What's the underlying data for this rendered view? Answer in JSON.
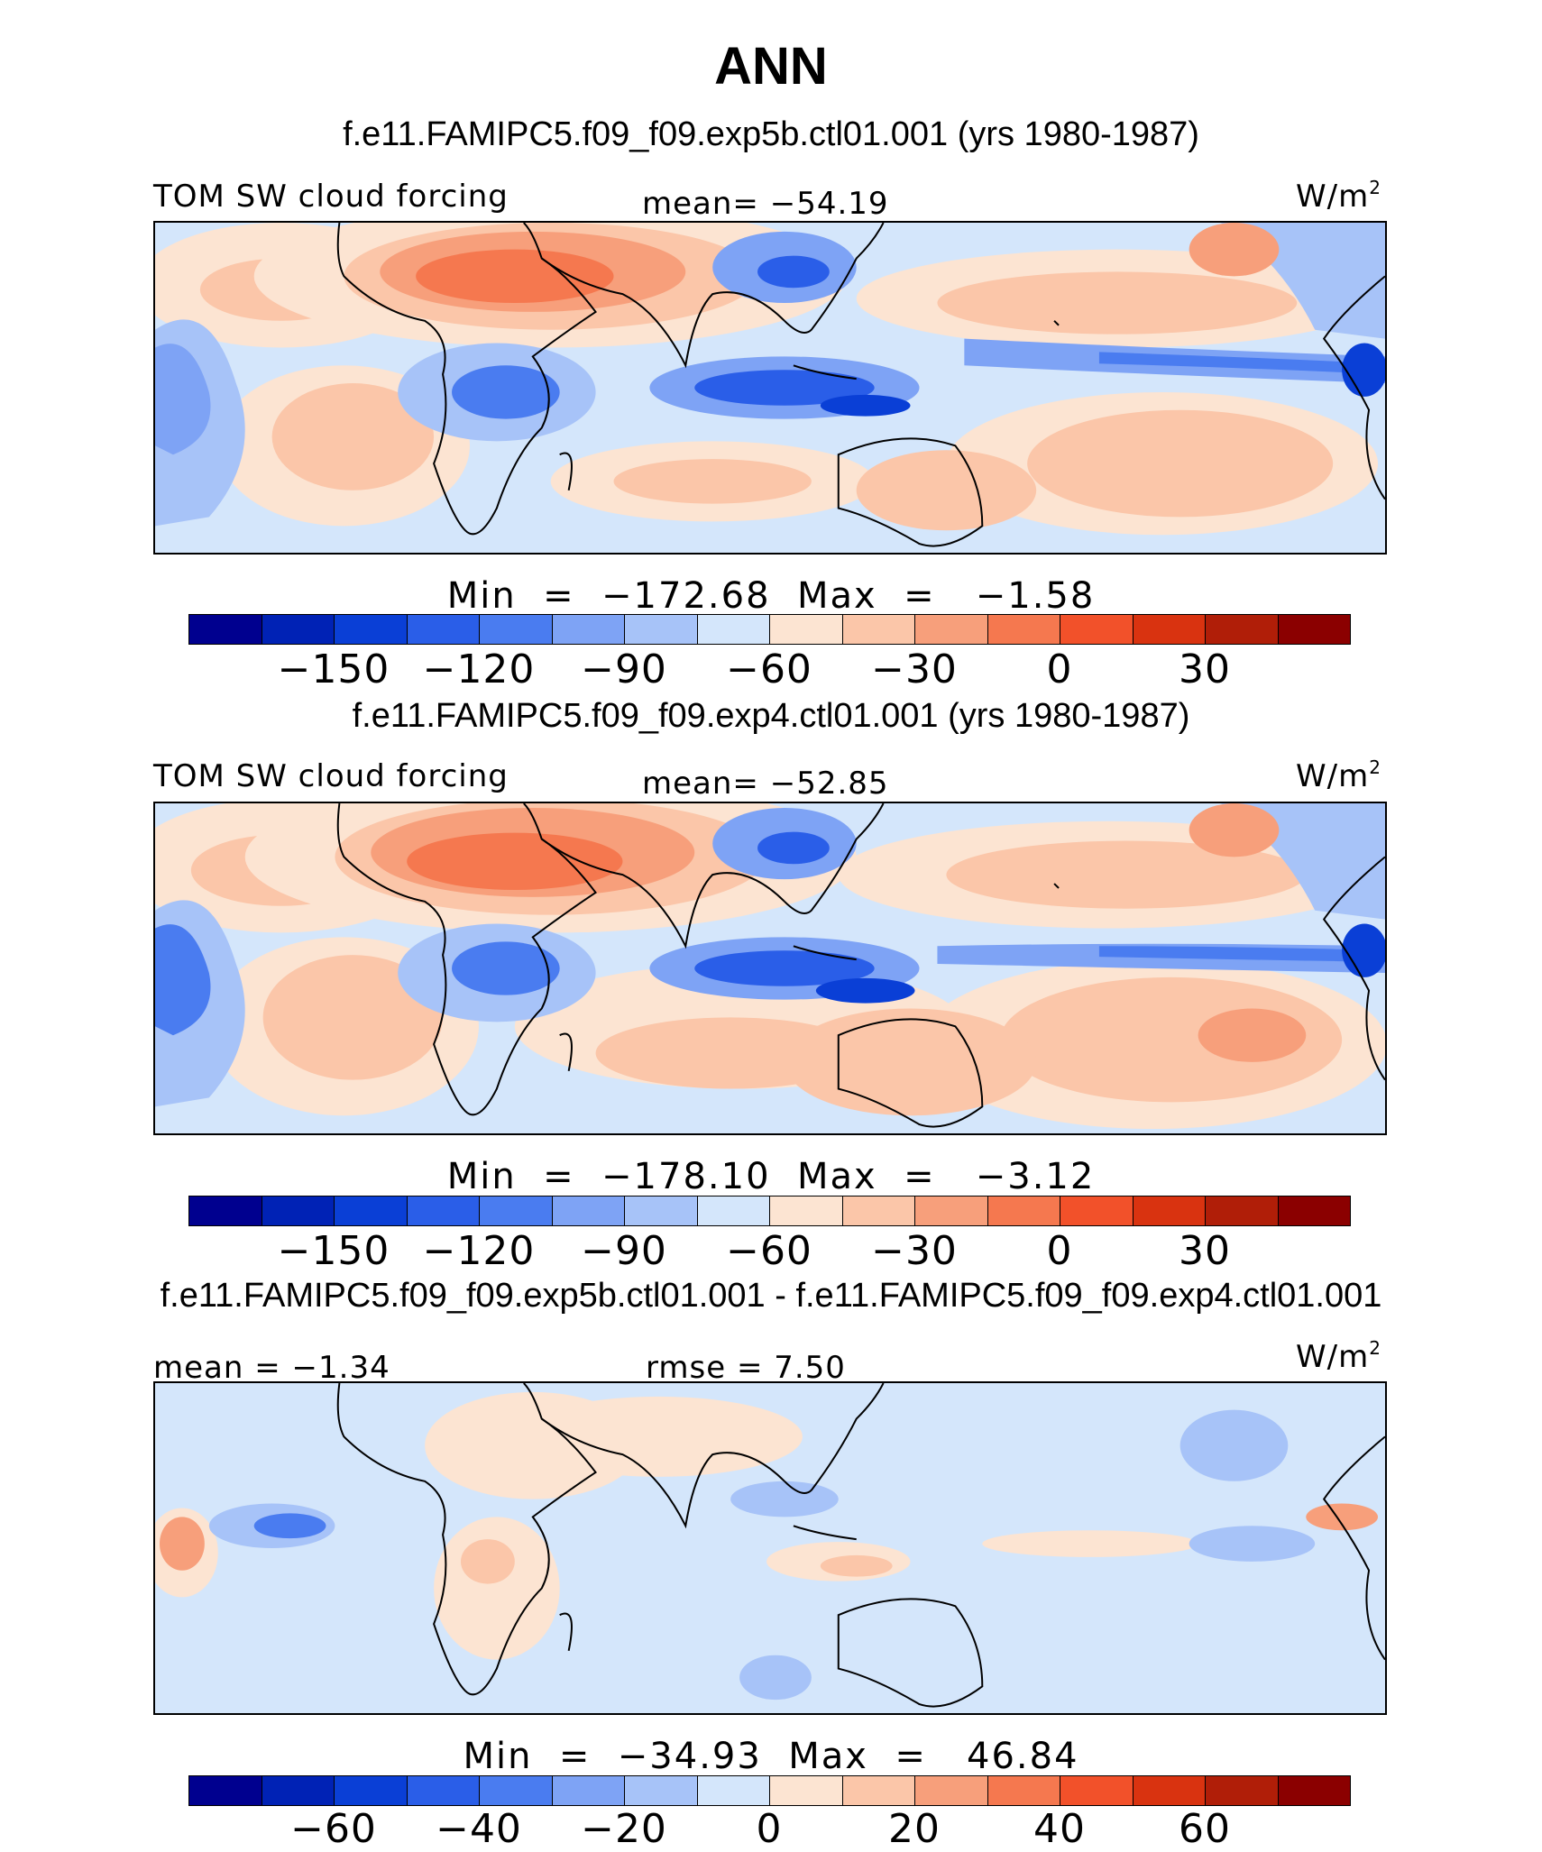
{
  "title": "ANN",
  "panels": [
    {
      "case": "f.e11.FAMIPC5.f09_f09.exp5b.ctl01.001 (yrs 1980-1987)",
      "left_label": "TOM SW cloud forcing",
      "center_label": "mean= −54.19",
      "units": "W/m",
      "units_sup": "2",
      "minmax": "Min  =  −172.68  Max  =   −1.58",
      "ticks": [
        "−150",
        "−120",
        "−90",
        "−60",
        "−30",
        "0",
        "30"
      ]
    },
    {
      "case": "f.e11.FAMIPC5.f09_f09.exp4.ctl01.001 (yrs 1980-1987)",
      "left_label": "TOM SW cloud forcing",
      "center_label": "mean= −52.85",
      "units": "W/m",
      "units_sup": "2",
      "minmax": "Min  =  −178.10  Max  =   −3.12",
      "ticks": [
        "−150",
        "−120",
        "−90",
        "−60",
        "−30",
        "0",
        "30"
      ]
    },
    {
      "case": "f.e11.FAMIPC5.f09_f09.exp5b.ctl01.001 - f.e11.FAMIPC5.f09_f09.exp4.ctl01.001",
      "left_label": "mean =  −1.34",
      "center_label": "rmse =   7.50",
      "units": "W/m",
      "units_sup": "2",
      "minmax": "Min  =  −34.93  Max  =   46.84",
      "ticks": [
        "−60",
        "−40",
        "−20",
        "0",
        "20",
        "40",
        "60"
      ]
    }
  ],
  "colors": {
    "palette": [
      "#00008f",
      "#0022b5",
      "#0a3fd6",
      "#2a5ee8",
      "#4a7cf0",
      "#7ea3f5",
      "#a7c3f8",
      "#d4e6fb",
      "#fce4d2",
      "#fbc6a9",
      "#f79f7b",
      "#f5784f",
      "#f2512a",
      "#d93310",
      "#b01e08",
      "#8b0000"
    ],
    "coast": "#000000"
  }
}
